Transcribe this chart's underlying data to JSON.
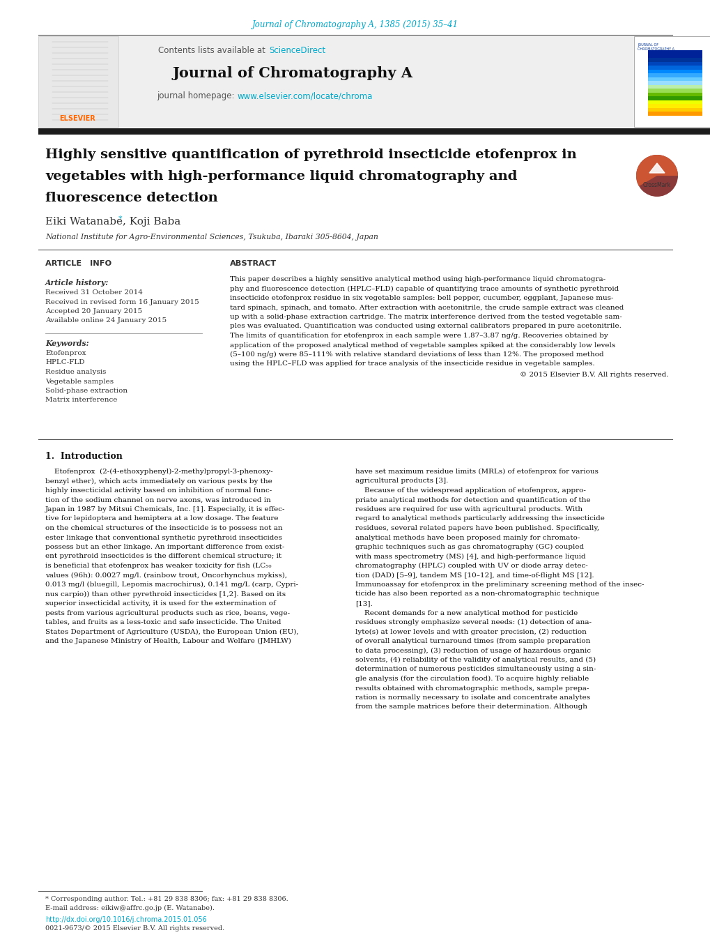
{
  "bg_color": "#ffffff",
  "journal_citation": "Journal of Chromatography A, 1385 (2015) 35–41",
  "journal_citation_color": "#00aacc",
  "contents_text": "Contents lists available at ",
  "sciencedirect_text": "ScienceDirect",
  "sciencedirect_color": "#00aacc",
  "journal_name": "Journal of Chromatography A",
  "homepage_prefix": "journal homepage: ",
  "homepage_url": "www.elsevier.com/locate/chroma",
  "homepage_url_color": "#00aacc",
  "elsevier_color": "#ff6600",
  "header_bg": "#efefef",
  "dark_separator_color": "#1a1a1a",
  "article_title_line1": "Highly sensitive quantification of pyrethroid insecticide etofenprox in",
  "article_title_line2": "vegetables with high-performance liquid chromatography and",
  "article_title_line3": "fluorescence detection",
  "authors": "Eiki Watanabe",
  "author_star_color": "#00aacc",
  "authors2": ", Koji Baba",
  "affiliation": "National Institute for Agro-Environmental Sciences, Tsukuba, Ibaraki 305-8604, Japan",
  "article_info_header": "ARTICLE   INFO",
  "abstract_header": "ABSTRACT",
  "article_history_header": "Article history:",
  "dates": [
    "Received 31 October 2014",
    "Received in revised form 16 January 2015",
    "Accepted 20 January 2015",
    "Available online 24 January 2015"
  ],
  "keywords_header": "Keywords:",
  "keywords": [
    "Etofenprox",
    "HPLC-FLD",
    "Residue analysis",
    "Vegetable samples",
    "Solid-phase extraction",
    "Matrix interference"
  ],
  "abstract_lines": [
    "This paper describes a highly sensitive analytical method using high-performance liquid chromatogra-",
    "phy and fluorescence detection (HPLC–FLD) capable of quantifying trace amounts of synthetic pyrethroid",
    "insecticide etofenprox residue in six vegetable samples: bell pepper, cucumber, eggplant, Japanese mus-",
    "tard spinach, spinach, and tomato. After extraction with acetonitrile, the crude sample extract was cleaned",
    "up with a solid-phase extraction cartridge. The matrix interference derived from the tested vegetable sam-",
    "ples was evaluated. Quantification was conducted using external calibrators prepared in pure acetonitrile.",
    "The limits of quantification for etofenprox in each sample were 1.87–3.87 ng/g. Recoveries obtained by",
    "application of the proposed analytical method of vegetable samples spiked at the considerably low levels",
    "(5–100 ng/g) were 85–111% with relative standard deviations of less than 12%. The proposed method",
    "using the HPLC–FLD was applied for trace analysis of the insecticide residue in vegetable samples."
  ],
  "copyright_text": "© 2015 Elsevier B.V. All rights reserved.",
  "section1_header": "1.  Introduction",
  "intro_left_lines": [
    "    Etofenprox  (2-(4-ethoxyphenyl)-2-methylpropyl-3-phenoxy-",
    "benzyl ether), which acts immediately on various pests by the",
    "highly insecticidal activity based on inhibition of normal func-",
    "tion of the sodium channel on nerve axons, was introduced in",
    "Japan in 1987 by Mitsui Chemicals, Inc. [1]. Especially, it is effec-",
    "tive for lepidoptera and hemiptera at a low dosage. The feature",
    "on the chemical structures of the insecticide is to possess not an",
    "ester linkage that conventional synthetic pyrethroid insecticides",
    "possess but an ether linkage. An important difference from exist-",
    "ent pyrethroid insecticides is the different chemical structure; it",
    "is beneficial that etofenprox has weaker toxicity for fish (LC₅₀",
    "values (96h): 0.0027 mg/l. (rainbow trout, Oncorhynchus mykiss),",
    "0.013 mg/l (bluegill, Lepomis macrochirus), 0.141 mg/L (carp, Cypri-",
    "nus carpio)) than other pyrethroid insecticides [1,2]. Based on its",
    "superior insecticidal activity, it is used for the extermination of",
    "pests from various agricultural products such as rice, beans, vege-",
    "tables, and fruits as a less-toxic and safe insecticide. The United",
    "States Department of Agriculture (USDA), the European Union (EU),",
    "and the Japanese Ministry of Health, Labour and Welfare (JMHLW)"
  ],
  "intro_right_lines": [
    "have set maximum residue limits (MRLs) of etofenprox for various",
    "agricultural products [3].",
    "    Because of the widespread application of etofenprox, appro-",
    "priate analytical methods for detection and quantification of the",
    "residues are required for use with agricultural products. With",
    "regard to analytical methods particularly addressing the insecticide",
    "residues, several related papers have been published. Specifically,",
    "analytical methods have been proposed mainly for chromato-",
    "graphic techniques such as gas chromatography (GC) coupled",
    "with mass spectrometry (MS) [4], and high-performance liquid",
    "chromatography (HPLC) coupled with UV or diode array detec-",
    "tion (DAD) [5–9], tandem MS [10–12], and time-of-flight MS [12].",
    "Immunoassay for etofenprox in the preliminary screening method of the insec-",
    "ticide has also been reported as a non-chromatographic technique",
    "[13].",
    "    Recent demands for a new analytical method for pesticide",
    "residues strongly emphasize several needs: (1) detection of ana-",
    "lyte(s) at lower levels and with greater precision, (2) reduction",
    "of overall analytical turnaround times (from sample preparation",
    "to data processing), (3) reduction of usage of hazardous organic",
    "solvents, (4) reliability of the validity of analytical results, and (5)",
    "determination of numerous pesticides simultaneously using a sin-",
    "gle analysis (for the circulation food). To acquire highly reliable",
    "results obtained with chromatographic methods, sample prepa-",
    "ration is normally necessary to isolate and concentrate analytes",
    "from the sample matrices before their determination. Although"
  ],
  "footnote_star": "* Corresponding author. Tel.: +81 29 838 8306; fax: +81 29 838 8306.",
  "footnote_email": "E-mail address: eikiw@affrc.go.jp (E. Watanabe).",
  "footnote_doi": "http://dx.doi.org/10.1016/j.chroma.2015.01.056",
  "footnote_issn": "0021-9673/© 2015 Elsevier B.V. All rights reserved.",
  "ref_color": "#00aacc",
  "cover_strips": [
    "#002299",
    "#002299",
    "#003399",
    "#0044bb",
    "#0066dd",
    "#0088ff",
    "#33aaff",
    "#66ccff",
    "#99ddff",
    "#bbeeaa",
    "#99dd55",
    "#66bb00",
    "#339900",
    "#eeff00",
    "#ffee00",
    "#ffcc00",
    "#ff9900"
  ]
}
